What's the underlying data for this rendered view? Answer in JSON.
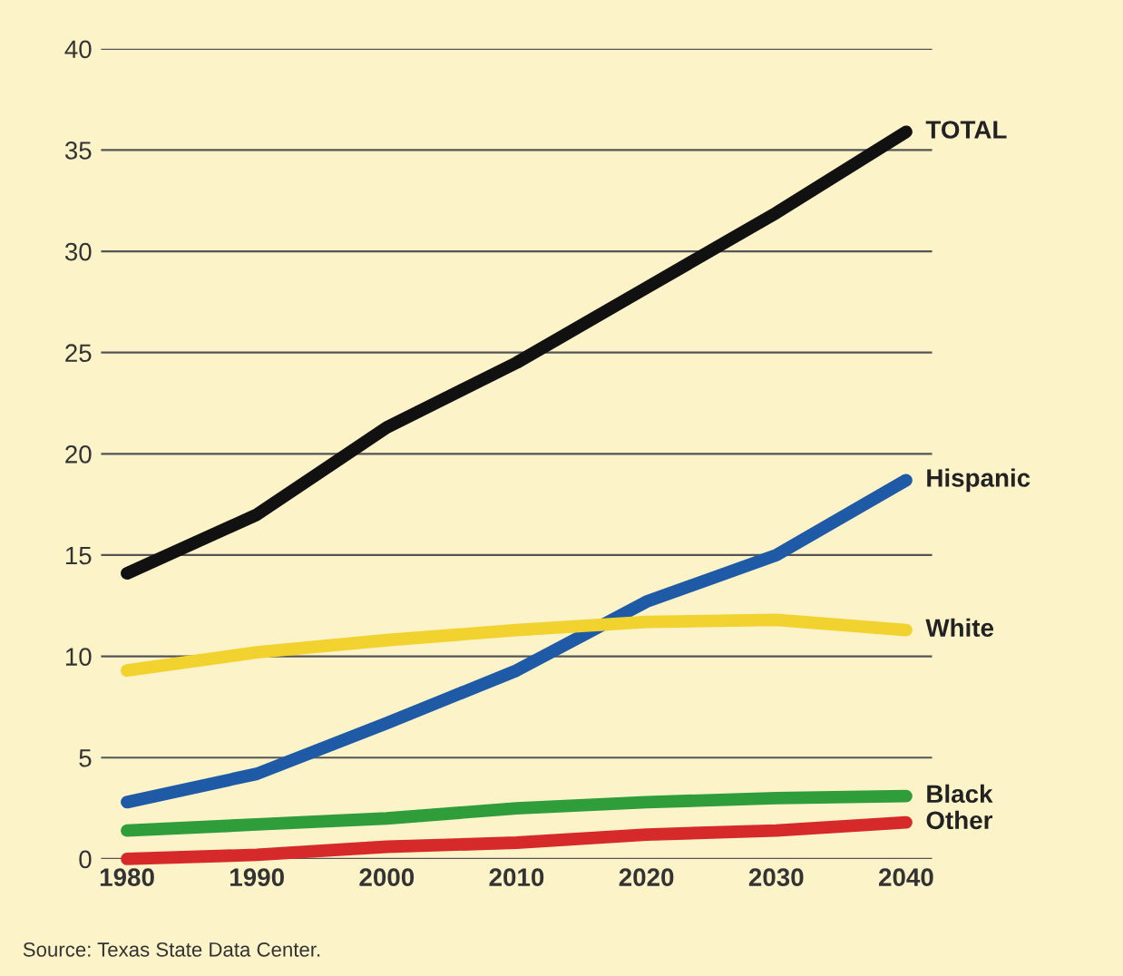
{
  "chart_data": {
    "type": "line",
    "x": [
      1980,
      1990,
      2000,
      2010,
      2020,
      2030,
      2040
    ],
    "series": [
      {
        "name": "TOTAL",
        "color": "#111111",
        "values": [
          14.1,
          17,
          21.3,
          24.5,
          28.2,
          31.9,
          35.9
        ]
      },
      {
        "name": "Hispanic",
        "color": "#1f5aa6",
        "values": [
          2.8,
          4.2,
          6.7,
          9.3,
          12.7,
          15,
          18.7
        ]
      },
      {
        "name": "White",
        "color": "#f2d22e",
        "values": [
          9.3,
          10.2,
          10.8,
          11.3,
          11.7,
          11.8,
          11.3
        ]
      },
      {
        "name": "Black",
        "color": "#2f9e3a",
        "values": [
          1.4,
          1.7,
          2.0,
          2.5,
          2.8,
          3.0,
          3.1
        ]
      },
      {
        "name": "Other",
        "color": "#d62a2a",
        "values": [
          0,
          0.2,
          0.6,
          0.8,
          1.2,
          1.4,
          1.8
        ]
      }
    ],
    "xlim": [
      1978,
      2042
    ],
    "ylim": [
      0,
      40
    ],
    "xticks": [
      1980,
      1990,
      2000,
      2010,
      2020,
      2030,
      2040
    ],
    "yticks": [
      0,
      5,
      10,
      15,
      20,
      25,
      30,
      35,
      40
    ],
    "grid": "y",
    "legend": false,
    "marker": "none",
    "line_style": "solid",
    "annotations": [
      "Source: Texas State Data Center."
    ]
  }
}
